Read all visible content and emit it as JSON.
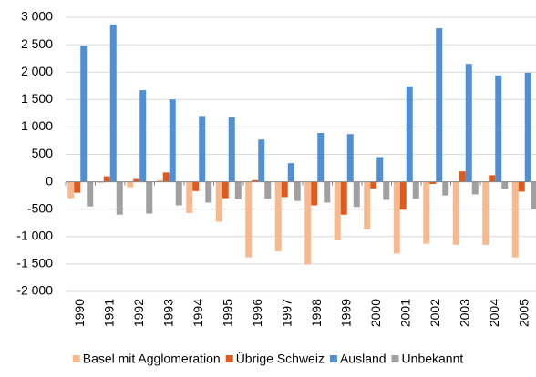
{
  "chart_data": {
    "type": "bar",
    "categories": [
      "1990",
      "1991",
      "1992",
      "1993",
      "1994",
      "1995",
      "1996",
      "1997",
      "1998",
      "1999",
      "2000",
      "2001",
      "2002",
      "2003",
      "2004",
      "2005"
    ],
    "series": [
      {
        "name": "Basel mit Agglomeration",
        "color": "#f9b98f",
        "values": [
          -300,
          -20,
          -100,
          30,
          -570,
          -730,
          -1380,
          -1270,
          -1510,
          -1070,
          -870,
          -1310,
          -1130,
          -1150,
          -1150,
          -1380
        ]
      },
      {
        "name": "Übrige Schweiz",
        "color": "#e05a1e",
        "values": [
          -200,
          100,
          50,
          170,
          -170,
          -300,
          30,
          -280,
          -430,
          -600,
          -120,
          -510,
          -40,
          190,
          120,
          -180
        ]
      },
      {
        "name": "Ausland",
        "color": "#4f8fd6",
        "values": [
          2480,
          2870,
          1670,
          1500,
          1200,
          1180,
          770,
          340,
          890,
          870,
          450,
          1740,
          2800,
          2150,
          1940,
          1990
        ]
      },
      {
        "name": "Unbekannt",
        "color": "#a0a0a0",
        "values": [
          -450,
          -600,
          -580,
          -430,
          -380,
          -320,
          -310,
          -350,
          -380,
          -460,
          -330,
          -310,
          -250,
          -230,
          -130,
          -500
        ]
      }
    ],
    "ylim": [
      -2000,
      3000
    ],
    "yticks": [
      {
        "value": -2000,
        "label": "-2 000"
      },
      {
        "value": -1500,
        "label": "-1 500"
      },
      {
        "value": -1000,
        "label": "-1 000"
      },
      -500,
      0,
      500,
      {
        "value": 1000,
        "label": "1 000"
      },
      {
        "value": 1500,
        "label": "1 500"
      },
      {
        "value": 2000,
        "label": "2 000"
      },
      {
        "value": 2500,
        "label": "2 500"
      },
      {
        "value": 3000,
        "label": "3 000"
      }
    ],
    "grid": true
  }
}
